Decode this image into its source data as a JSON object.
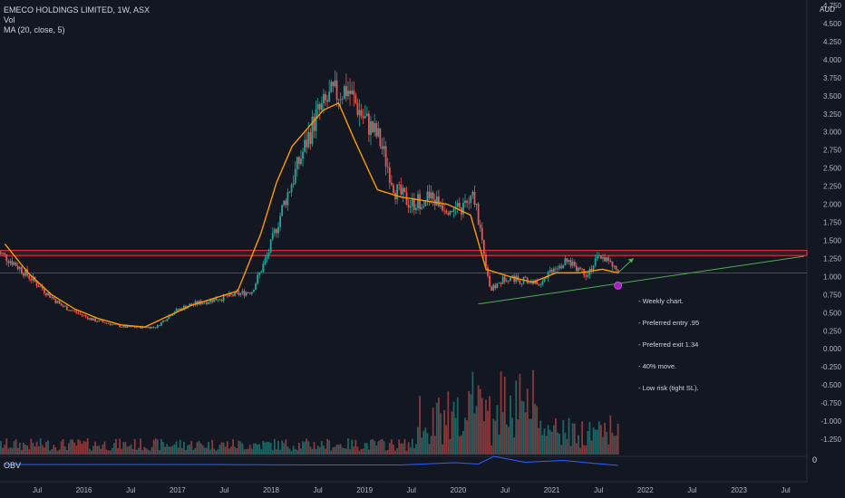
{
  "header": {
    "symbol_line": "EMECO HOLDINGS LIMITED, 1W, ASX",
    "vol_label": "Vol",
    "ma_label": "MA (20, close, 5)"
  },
  "currency": "AUD",
  "obv_label": "OBV",
  "obv_axis_value": "0",
  "note_lines": [
    "- Weekly chart.",
    "- Preferred entry .95",
    "- Preferred exit 1.34",
    "- 40% move.",
    "- Low risk (tight SL)."
  ],
  "colors": {
    "background": "#131722",
    "up": "#26a69a",
    "down": "#ef5350",
    "ma": "#ff9800",
    "resistance": "#f23645",
    "support_trend": "#4caf50",
    "obv": "#2962ff"
  },
  "chart_data": {
    "type": "line",
    "title": "EMECO HOLDINGS LIMITED, 1W, ASX",
    "x_ticks": [
      "Jul",
      "2016",
      "Jul",
      "2017",
      "Jul",
      "2018",
      "Jul",
      "2019",
      "Jul",
      "2020",
      "Jul",
      "2021",
      "Jul",
      "2022",
      "Jul",
      "2023",
      "Jul"
    ],
    "y_ticks": [
      "4.750",
      "4.500",
      "4.250",
      "4.000",
      "3.750",
      "3.500",
      "3.250",
      "3.000",
      "2.750",
      "2.500",
      "2.250",
      "2.000",
      "1.750",
      "1.500",
      "1.250",
      "1.000",
      "0.750",
      "0.500",
      "0.250",
      "0.000",
      "-0.250",
      "-0.500",
      "-0.750",
      "-1.000",
      "-1.250"
    ],
    "ylim": [
      -1.25,
      4.75
    ],
    "log_scale": false,
    "grid": false,
    "series": [
      {
        "name": "MA (20, close, 5)",
        "x": [
          "2015-03",
          "2015-06",
          "2015-09",
          "2015-12",
          "2016-03",
          "2016-06",
          "2016-09",
          "2016-12",
          "2017-03",
          "2017-06",
          "2017-09",
          "2017-12",
          "2018-02",
          "2018-04",
          "2018-06",
          "2018-08",
          "2018-10",
          "2018-12",
          "2019-03",
          "2019-06",
          "2019-09",
          "2019-12",
          "2020-03",
          "2020-05",
          "2020-08",
          "2020-11",
          "2021-02",
          "2021-05",
          "2021-08",
          "2021-10"
        ],
        "values": [
          1.45,
          1.05,
          0.75,
          0.55,
          0.42,
          0.33,
          0.3,
          0.45,
          0.6,
          0.7,
          0.8,
          1.6,
          2.3,
          2.8,
          3.05,
          3.3,
          3.4,
          2.9,
          2.2,
          2.1,
          2.05,
          2.0,
          1.85,
          1.1,
          1.0,
          0.92,
          1.05,
          1.05,
          1.1,
          1.05
        ]
      },
      {
        "name": "OBV",
        "x": [
          "2015-03",
          "2016-06",
          "2017-06",
          "2018-06",
          "2019-06",
          "2020-01",
          "2020-04",
          "2020-06",
          "2020-10",
          "2021-03",
          "2021-06",
          "2021-10"
        ],
        "values": [
          0.1,
          0.1,
          0.1,
          0.05,
          0.05,
          0.3,
          0.15,
          1.0,
          0.35,
          0.55,
          0.3,
          0.0
        ]
      }
    ],
    "price_candles_closes_approx": [
      1.35,
      1.2,
      1.0,
      0.8,
      0.6,
      0.5,
      0.4,
      0.35,
      0.3,
      0.3,
      0.3,
      0.5,
      0.6,
      0.65,
      0.7,
      0.75,
      0.8,
      1.3,
      2.0,
      2.6,
      3.2,
      3.5,
      3.6,
      3.2,
      2.9,
      2.2,
      2.0,
      2.1,
      2.0,
      1.9,
      2.1,
      0.8,
      1.0,
      0.95,
      0.9,
      1.15,
      1.2,
      1.05,
      1.3,
      1.05
    ],
    "annotations": {
      "resistance_band": [
        1.29,
        1.36
      ],
      "horizontal_line": 1.05,
      "trendline": {
        "start": [
          "2020-04",
          0.62
        ],
        "end": [
          "2023-10",
          1.28
        ]
      },
      "projection_arrow": {
        "start": [
          "2021-10",
          1.05
        ],
        "end": [
          "2021-12",
          1.25
        ]
      },
      "entry_marker": [
        "2021-10",
        0.95
      ]
    }
  }
}
